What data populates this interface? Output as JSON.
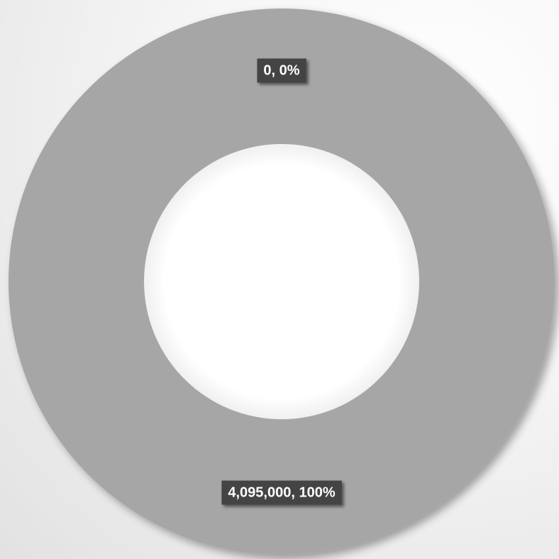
{
  "chart_data": {
    "type": "pie",
    "variant": "doughnut",
    "title": "",
    "slices": [
      {
        "value": 0,
        "percent": 0,
        "label": "0, 0%",
        "color": "#a6a6a6"
      },
      {
        "value": 4095000,
        "percent": 100,
        "label": "4,095,000, 100%",
        "color": "#a6a6a6"
      }
    ],
    "legend": "none",
    "label_box_color": "#404040",
    "label_text_color": "#ffffff"
  }
}
